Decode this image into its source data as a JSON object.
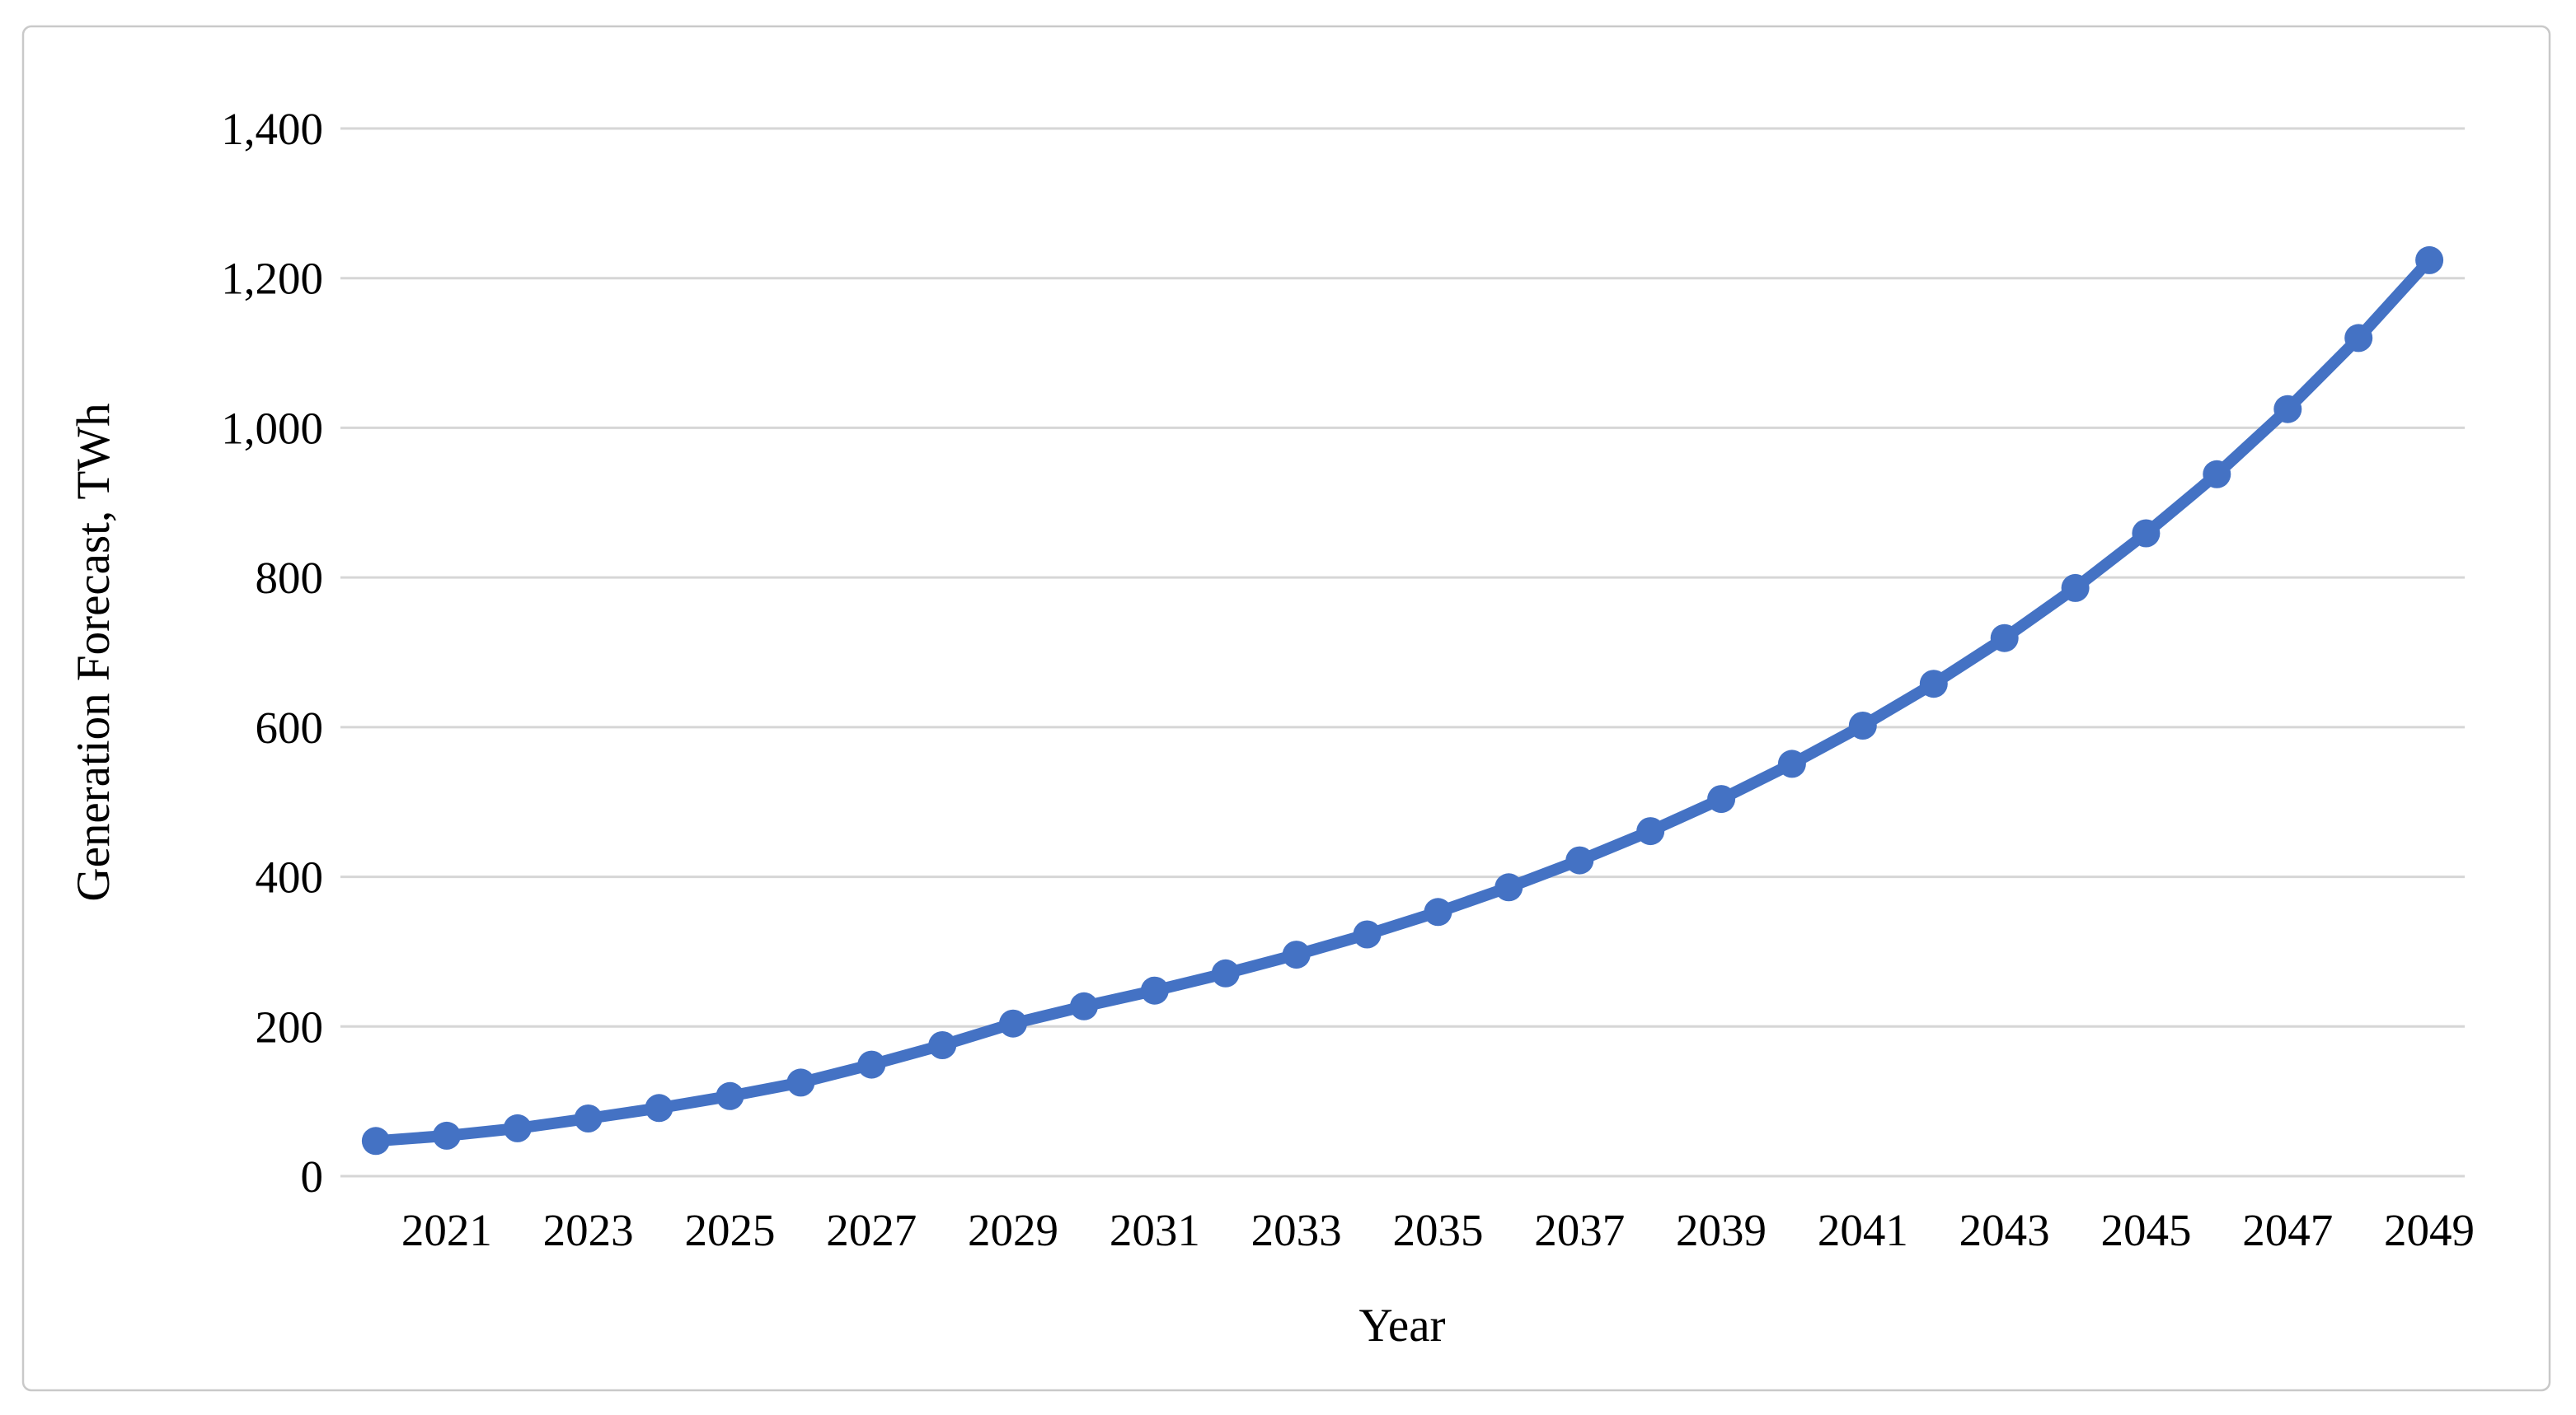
{
  "figure": {
    "background_color": "#ffffff",
    "border_color": "#c9c9c9"
  },
  "chart_data": {
    "type": "line",
    "title": "",
    "xlabel": "Year",
    "ylabel": "Generation Forecast, TWh",
    "series_name": "Generation Forecast",
    "series_color": "#4472C4",
    "marker": "circle",
    "grid": "horizontal",
    "legend_position": "none",
    "x": [
      2020,
      2021,
      2022,
      2023,
      2024,
      2025,
      2026,
      2027,
      2028,
      2029,
      2030,
      2031,
      2032,
      2033,
      2034,
      2035,
      2036,
      2037,
      2038,
      2039,
      2040,
      2041,
      2042,
      2043,
      2044,
      2045,
      2046,
      2047,
      2048,
      2049
    ],
    "values": [
      47,
      54,
      64,
      77,
      91,
      107,
      125,
      149,
      175,
      204,
      227,
      248,
      271,
      296,
      323,
      353,
      386,
      422,
      461,
      504,
      551,
      602,
      658,
      719,
      786,
      859,
      938,
      1025,
      1120,
      1224
    ],
    "x_tick_labels": [
      "2021",
      "2023",
      "2025",
      "2027",
      "2029",
      "2031",
      "2033",
      "2035",
      "2037",
      "2039",
      "2041",
      "2043",
      "2045",
      "2047",
      "2049"
    ],
    "y_ticks": [
      0,
      200,
      400,
      600,
      800,
      1000,
      1200,
      1400
    ],
    "y_tick_labels": [
      "0",
      "200",
      "400",
      "600",
      "800",
      "1,000",
      "1,200",
      "1,400"
    ],
    "ylim": [
      0,
      1400
    ]
  }
}
